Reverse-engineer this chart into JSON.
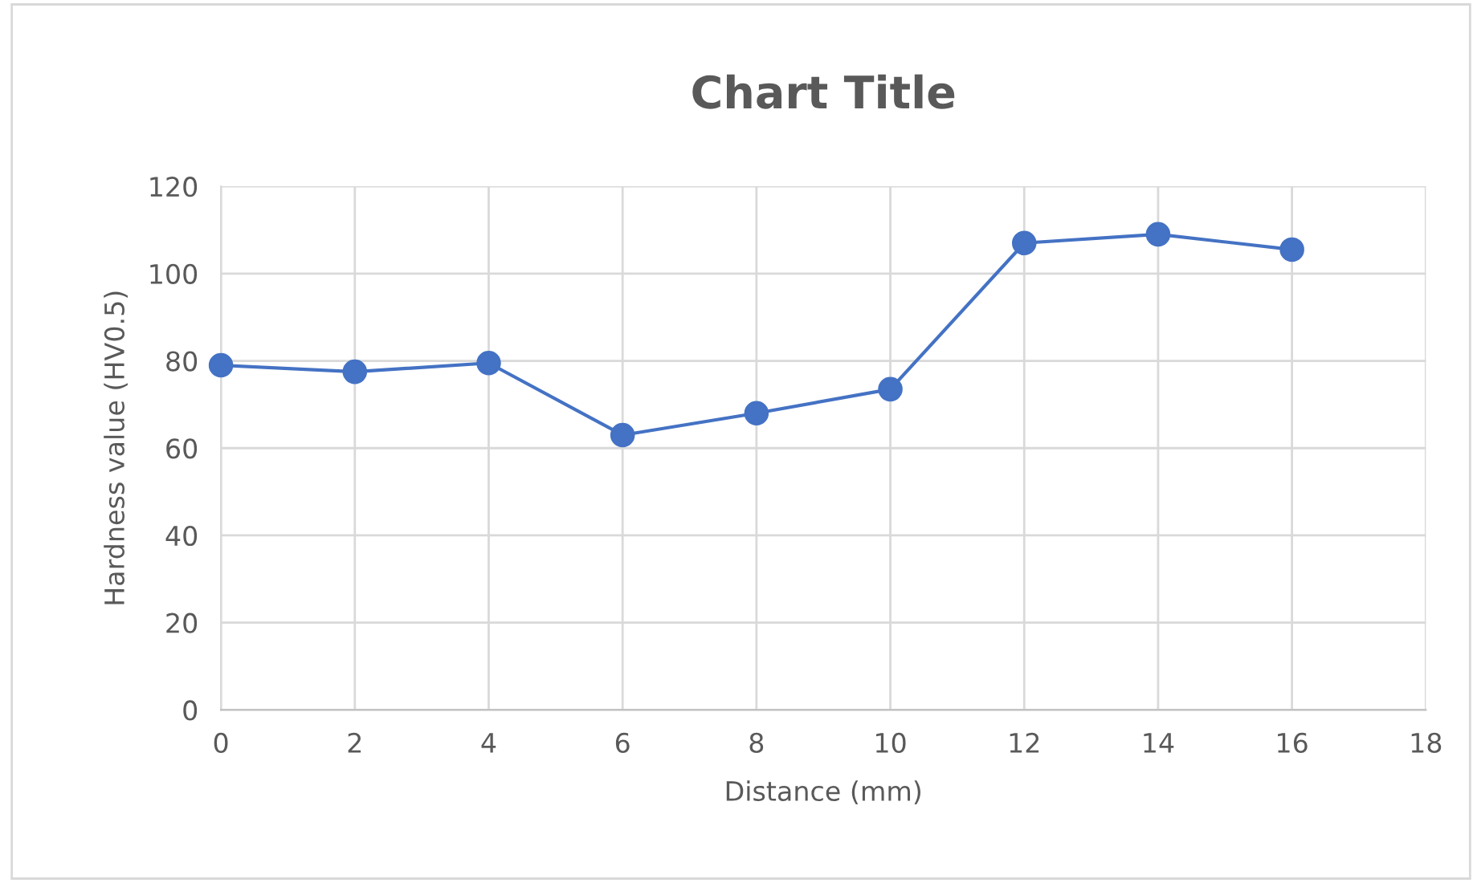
{
  "chart_data": {
    "type": "line",
    "title": "Chart Title",
    "xlabel": "Distance (mm)",
    "ylabel": "Hardness value (HV0.5)",
    "x": [
      0,
      2,
      4,
      6,
      8,
      10,
      12,
      14,
      16
    ],
    "series": [
      {
        "color": "#4472c4",
        "values": [
          79,
          77.5,
          79.5,
          63,
          68,
          73.5,
          107,
          109,
          105.5
        ]
      }
    ],
    "xlim": [
      0,
      18
    ],
    "xticks": [
      0,
      2,
      4,
      6,
      8,
      10,
      12,
      14,
      16,
      18
    ],
    "ylim": [
      0,
      120
    ],
    "yticks": [
      0,
      20,
      40,
      60,
      80,
      100,
      120
    ],
    "grid": true,
    "marker": "circle",
    "line_style": "solid"
  }
}
